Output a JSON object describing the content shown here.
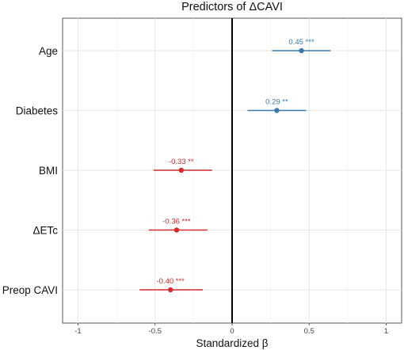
{
  "chart_data": {
    "type": "scatter",
    "subtype": "forest-plot",
    "title": "Predictors of ΔCAVI",
    "xlabel": "Standardized β",
    "ylabel": "",
    "xlim": [
      -1.1,
      1.1
    ],
    "xticks": [
      -1,
      -0.5,
      0,
      0.5,
      1
    ],
    "xtick_labels": [
      "-1",
      "-0.5",
      "0",
      "0.5",
      "1"
    ],
    "reference_line_x": 0,
    "grid": true,
    "legend": "none",
    "colors": {
      "positive": "#3a78b0",
      "negative": "#d42a2a"
    },
    "predictors": [
      {
        "name": "Age",
        "beta": 0.45,
        "ci": [
          0.26,
          0.64
        ],
        "label": "0.45 ***",
        "sign": "positive"
      },
      {
        "name": "Diabetes",
        "beta": 0.29,
        "ci": [
          0.1,
          0.48
        ],
        "label": "0.29 **",
        "sign": "positive"
      },
      {
        "name": "BMI",
        "beta": -0.33,
        "ci": [
          -0.51,
          -0.13
        ],
        "label": "-0.33 **",
        "sign": "negative"
      },
      {
        "name": "ΔETc",
        "beta": -0.36,
        "ci": [
          -0.54,
          -0.16
        ],
        "label": "-0.36 ***",
        "sign": "negative"
      },
      {
        "name": "Preop CAVI",
        "beta": -0.4,
        "ci": [
          -0.6,
          -0.19
        ],
        "label": "-0.40 ***",
        "sign": "negative"
      }
    ]
  }
}
